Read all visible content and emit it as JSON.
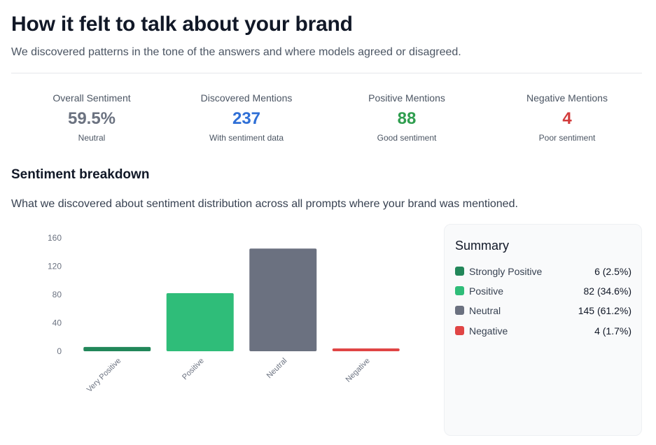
{
  "header": {
    "title": "How it felt to talk about your brand",
    "subtitle": "We discovered patterns in the tone of the answers and where models agreed or disagreed."
  },
  "stats": [
    {
      "label": "Overall Sentiment",
      "value": "59.5%",
      "sub": "Neutral",
      "color": "#6b7280"
    },
    {
      "label": "Discovered Mentions",
      "value": "237",
      "sub": "With sentiment data",
      "color": "#2f6fd6"
    },
    {
      "label": "Positive Mentions",
      "value": "88",
      "sub": "Good sentiment",
      "color": "#2f9e4f"
    },
    {
      "label": "Negative Mentions",
      "value": "4",
      "sub": "Poor sentiment",
      "color": "#d23b3b"
    }
  ],
  "breakdown": {
    "title": "Sentiment breakdown",
    "subtitle": "What we discovered about sentiment distribution across all prompts where your brand was mentioned."
  },
  "chart_data": {
    "type": "bar",
    "categories": [
      "Very Positive",
      "Positive",
      "Neutral",
      "Negative"
    ],
    "values": [
      6,
      82,
      145,
      4
    ],
    "colors": [
      "#22875a",
      "#2fbd79",
      "#6b7180",
      "#e04545"
    ],
    "ylim": [
      0,
      160
    ],
    "yticks": [
      "0",
      "40",
      "80",
      "120",
      "160"
    ],
    "grid": false
  },
  "summary": {
    "title": "Summary",
    "items": [
      {
        "label": "Strongly Positive",
        "value": "6 (2.5%)",
        "color": "#22875a"
      },
      {
        "label": "Positive",
        "value": "82 (34.6%)",
        "color": "#2fbd79"
      },
      {
        "label": "Neutral",
        "value": "145 (61.2%)",
        "color": "#6b7180"
      },
      {
        "label": "Negative",
        "value": "4 (1.7%)",
        "color": "#e04545"
      }
    ]
  }
}
